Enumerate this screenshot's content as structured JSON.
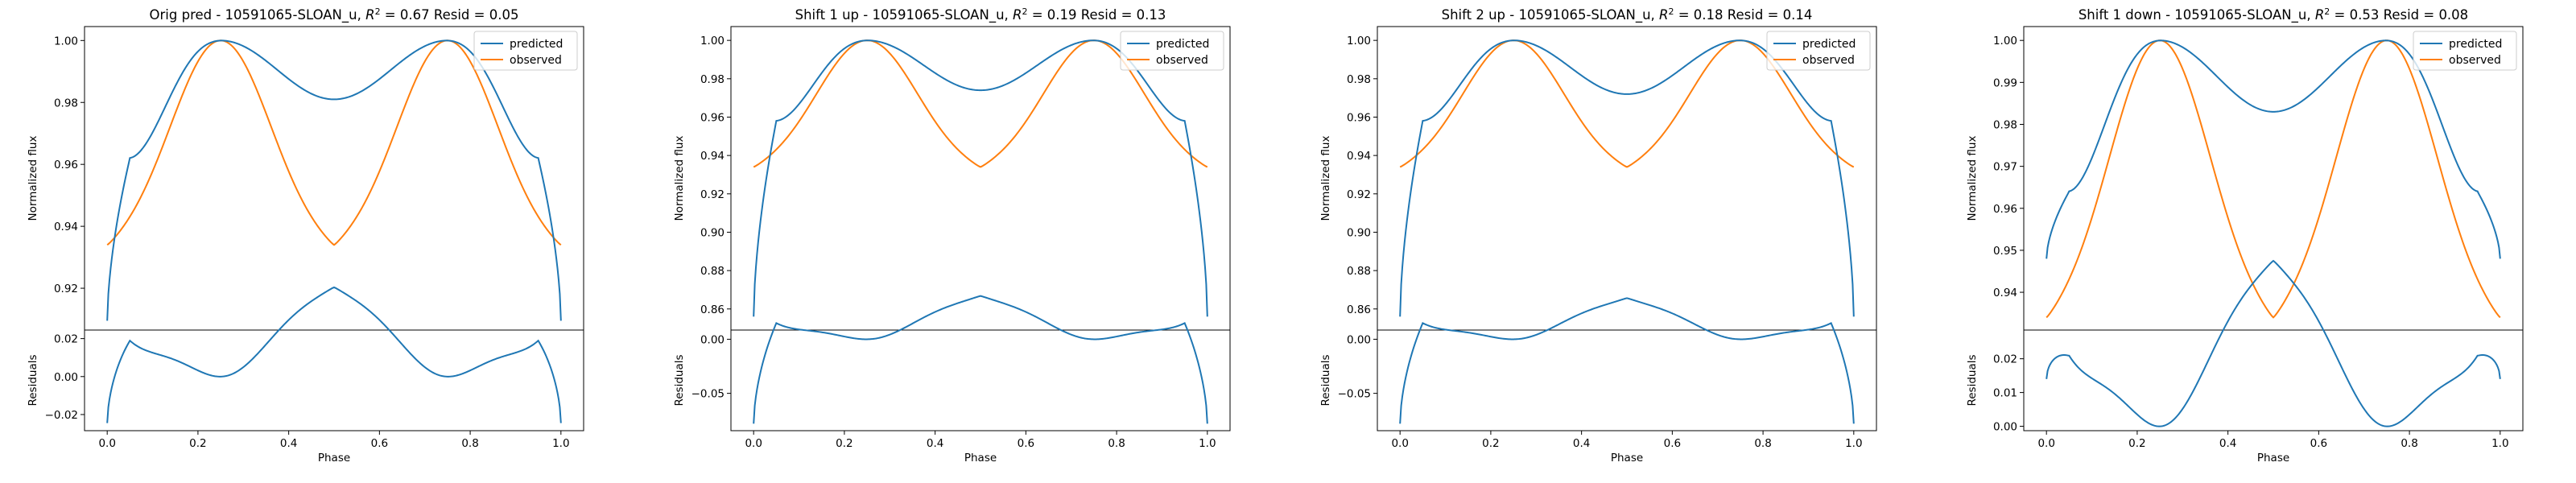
{
  "figure": {
    "panels": [
      {
        "title": "Orig pred - 10591065-SLOAN_u, R² = 0.67 Resid = 0.05",
        "title_text": "Orig pred - 10591065-SLOAN_u,",
        "top_ylabel": "Normalized flux",
        "bottom_ylabel": "Residuals",
        "xlabel": "Phase",
        "legend": [
          "predicted",
          "observed"
        ]
      },
      {
        "title": "Shift 1 up - 10591065-SLOAN_u, R² = 0.19 Resid = 0.13",
        "title_text": "Shift 1 up - 10591065-SLOAN_u,",
        "top_ylabel": "Normalized flux",
        "bottom_ylabel": "Residuals",
        "xlabel": "Phase",
        "legend": [
          "predicted",
          "observed"
        ]
      },
      {
        "title": "Shift 2 up - 10591065-SLOAN_u, R² = 0.18 Resid = 0.14",
        "title_text": "Shift 2 up - 10591065-SLOAN_u,",
        "top_ylabel": "Normalized flux",
        "bottom_ylabel": "Residuals",
        "xlabel": "Phase",
        "legend": [
          "predicted",
          "observed"
        ]
      },
      {
        "title": "Shift 1 down - 10591065-SLOAN_u, R² = 0.53 Resid = 0.08",
        "title_text": "Shift 1 down - 10591065-SLOAN_u,",
        "top_ylabel": "Normalized flux",
        "bottom_ylabel": "Residuals",
        "xlabel": "Phase",
        "legend": [
          "predicted",
          "observed"
        ]
      }
    ]
  },
  "chart_data": [
    {
      "type": "line",
      "title": "Orig pred - 10591065-SLOAN_u, R² = 0.67 Resid = 0.05",
      "r2": "0.67",
      "resid": "0.05",
      "xlabel": "Phase",
      "top": {
        "ylabel": "Normalized flux",
        "ylim": [
          0.9065,
          1.0045
        ],
        "yticks": [
          0.92,
          0.94,
          0.96,
          0.98,
          1.0
        ],
        "ytick_labels": [
          "0.92",
          "0.94",
          "0.96",
          "0.98",
          "1.00"
        ],
        "legend_position": "upper right",
        "series": [
          {
            "name": "predicted",
            "color": "#1f77b4",
            "min": 0.9095,
            "edge": 0.962,
            "dip": 0.981
          },
          {
            "name": "observed",
            "color": "#ff7f0e",
            "min": 0.934,
            "dip": 0.966
          }
        ]
      },
      "bottom": {
        "ylabel": "Residuals",
        "ylim": [
          -0.0285,
          0.0245
        ],
        "yticks": [
          -0.02,
          0.0,
          0.02
        ],
        "ytick_labels": [
          "−0.02",
          "0.00",
          "0.02"
        ],
        "series": [
          {
            "name": "residual",
            "color": "#1f77b4"
          }
        ]
      },
      "xlim": [
        -0.05,
        1.05
      ],
      "xticks": [
        0.0,
        0.2,
        0.4,
        0.6,
        0.8,
        1.0
      ],
      "xtick_labels": [
        "0.0",
        "0.2",
        "0.4",
        "0.6",
        "0.8",
        "1.0"
      ]
    },
    {
      "type": "line",
      "title": "Shift 1 up - 10591065-SLOAN_u, R² = 0.19 Resid = 0.13",
      "r2": "0.19",
      "resid": "0.13",
      "xlabel": "Phase",
      "top": {
        "ylabel": "Normalized flux",
        "ylim": [
          0.849,
          1.0072
        ],
        "yticks": [
          0.86,
          0.88,
          0.9,
          0.92,
          0.94,
          0.96,
          0.98,
          1.0
        ],
        "ytick_labels": [
          "0.86",
          "0.88",
          "0.90",
          "0.92",
          "0.94",
          "0.96",
          "0.98",
          "1.00"
        ],
        "legend_position": "upper right",
        "series": [
          {
            "name": "predicted",
            "color": "#1f77b4",
            "min": 0.856,
            "edge": 0.958,
            "dip": 0.974
          },
          {
            "name": "observed",
            "color": "#ff7f0e",
            "min": 0.934,
            "dip": 0.966
          }
        ]
      },
      "bottom": {
        "ylabel": "Residuals",
        "ylim": [
          -0.0845,
          0.0085
        ],
        "yticks": [
          -0.05,
          0.0
        ],
        "ytick_labels": [
          "−0.05",
          "0.00"
        ],
        "series": [
          {
            "name": "residual",
            "color": "#1f77b4"
          }
        ]
      },
      "xlim": [
        -0.05,
        1.05
      ],
      "xticks": [
        0.0,
        0.2,
        0.4,
        0.6,
        0.8,
        1.0
      ],
      "xtick_labels": [
        "0.0",
        "0.2",
        "0.4",
        "0.6",
        "0.8",
        "1.0"
      ]
    },
    {
      "type": "line",
      "title": "Shift 2 up - 10591065-SLOAN_u, R² = 0.18 Resid = 0.14",
      "r2": "0.18",
      "resid": "0.14",
      "xlabel": "Phase",
      "top": {
        "ylabel": "Normalized flux",
        "ylim": [
          0.849,
          1.0072
        ],
        "yticks": [
          0.86,
          0.88,
          0.9,
          0.92,
          0.94,
          0.96,
          0.98,
          1.0
        ],
        "ytick_labels": [
          "0.86",
          "0.88",
          "0.90",
          "0.92",
          "0.94",
          "0.96",
          "0.98",
          "1.00"
        ],
        "legend_position": "upper right",
        "series": [
          {
            "name": "predicted",
            "color": "#1f77b4",
            "min": 0.856,
            "edge": 0.958,
            "dip": 0.972
          },
          {
            "name": "observed",
            "color": "#ff7f0e",
            "min": 0.934,
            "dip": 0.966
          }
        ]
      },
      "bottom": {
        "ylabel": "Residuals",
        "ylim": [
          -0.0845,
          0.0085
        ],
        "yticks": [
          -0.05,
          0.0
        ],
        "ytick_labels": [
          "−0.05",
          "0.00"
        ],
        "series": [
          {
            "name": "residual",
            "color": "#1f77b4"
          }
        ]
      },
      "xlim": [
        -0.05,
        1.05
      ],
      "xticks": [
        0.0,
        0.2,
        0.4,
        0.6,
        0.8,
        1.0
      ],
      "xtick_labels": [
        "0.0",
        "0.2",
        "0.4",
        "0.6",
        "0.8",
        "1.0"
      ]
    },
    {
      "type": "line",
      "title": "Shift 1 down - 10591065-SLOAN_u, R² = 0.53 Resid = 0.08",
      "r2": "0.53",
      "resid": "0.08",
      "xlabel": "Phase",
      "top": {
        "ylabel": "Normalized flux",
        "ylim": [
          0.931,
          1.0033
        ],
        "yticks": [
          0.94,
          0.95,
          0.96,
          0.97,
          0.98,
          0.99,
          1.0
        ],
        "ytick_labels": [
          "0.94",
          "0.95",
          "0.96",
          "0.97",
          "0.98",
          "0.99",
          "1.00"
        ],
        "legend_position": "upper right",
        "series": [
          {
            "name": "predicted",
            "color": "#1f77b4",
            "min": 0.948,
            "edge": 0.964,
            "dip": 0.983
          },
          {
            "name": "observed",
            "color": "#ff7f0e",
            "min": 0.934,
            "dip": 0.966
          }
        ]
      },
      "bottom": {
        "ylabel": "Residuals",
        "ylim": [
          -0.0013,
          0.0285
        ],
        "yticks": [
          0.0,
          0.01,
          0.02
        ],
        "ytick_labels": [
          "0.00",
          "0.01",
          "0.02"
        ],
        "series": [
          {
            "name": "residual",
            "color": "#1f77b4"
          }
        ]
      },
      "xlim": [
        -0.05,
        1.05
      ],
      "xticks": [
        0.0,
        0.2,
        0.4,
        0.6,
        0.8,
        1.0
      ],
      "xtick_labels": [
        "0.0",
        "0.2",
        "0.4",
        "0.6",
        "0.8",
        "1.0"
      ]
    }
  ]
}
